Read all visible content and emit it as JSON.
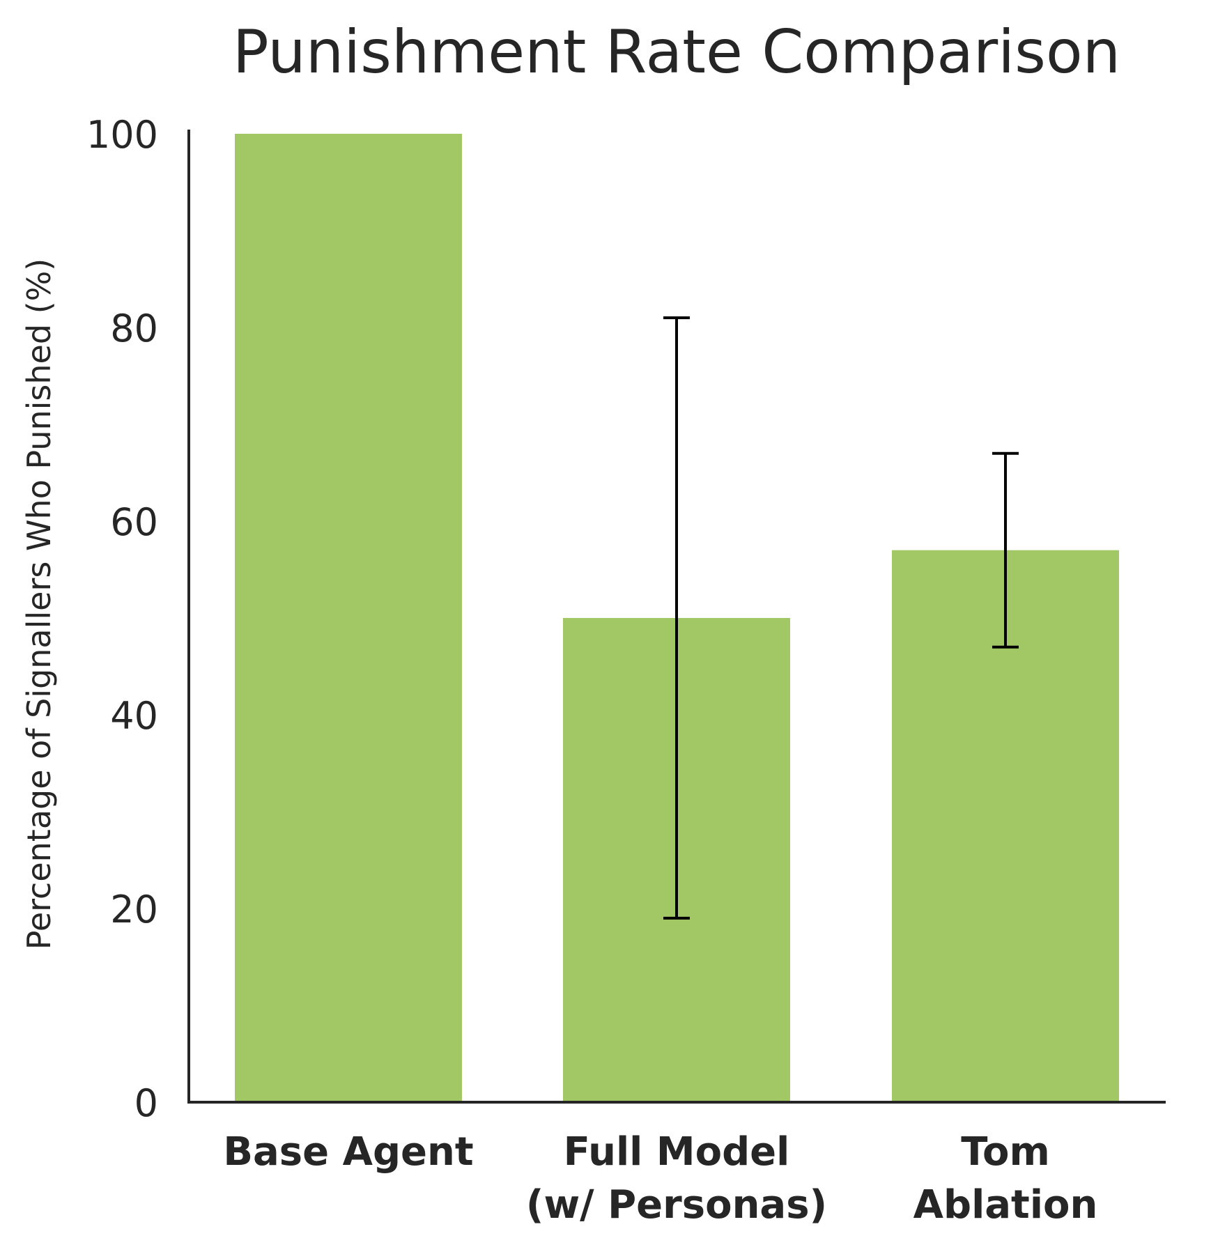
{
  "chart_data": {
    "type": "bar",
    "title": "Punishment Rate Comparison",
    "xlabel": "",
    "ylabel": "Percentage of Signallers Who Punished (%)",
    "ylim": [
      0,
      100
    ],
    "yticks": [
      0,
      20,
      40,
      60,
      80,
      100
    ],
    "categories": [
      [
        "Base Agent"
      ],
      [
        "Full Model",
        "(w/ Personas)"
      ],
      [
        "Tom",
        "Ablation"
      ]
    ],
    "values": [
      100,
      50,
      57
    ],
    "error_bars": [
      null,
      [
        19,
        81
      ]
    ],
    "error_bars_all": [
      null,
      [
        19,
        81
      ],
      [
        47,
        67
      ]
    ],
    "bar_color": "#a2c865",
    "grid": false,
    "spines": [
      "left",
      "bottom"
    ]
  }
}
